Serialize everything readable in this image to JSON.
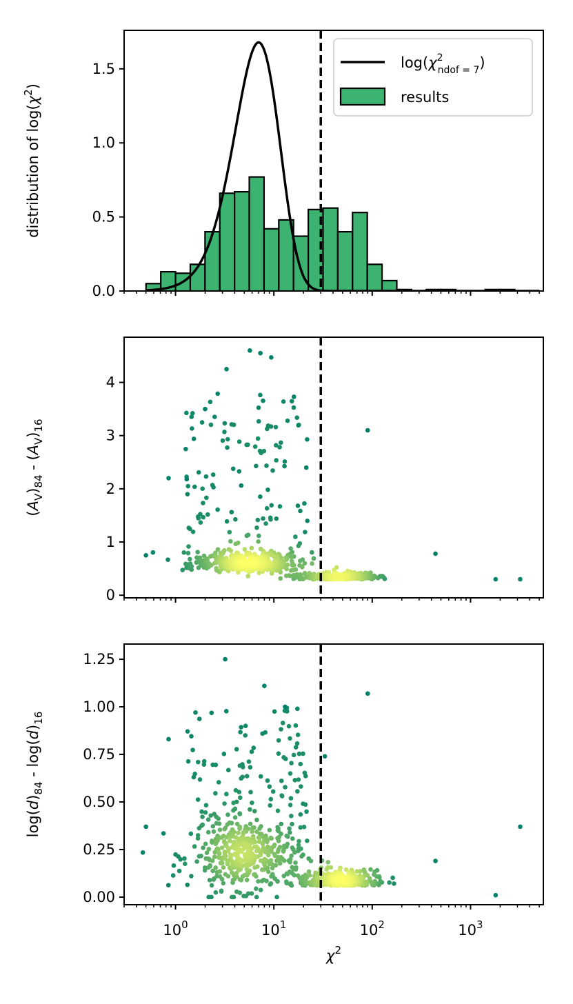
{
  "chart_data": [
    {
      "type": "histogram+line",
      "xscale": "log",
      "xlim": [
        0.3,
        5500
      ],
      "ylim": [
        0,
        1.76
      ],
      "ylabel": "distribution of log(χ²)",
      "yticks": [
        0.0,
        0.5,
        1.0,
        1.5
      ],
      "ytick_labels": [
        "0.0",
        "0.5",
        "1.0",
        "1.5"
      ],
      "vline": 30,
      "legend": {
        "placement": "top-right",
        "line_label": "log(χ²ndof = 7)",
        "bar_label": "results"
      },
      "hist_log10_edges": [
        -0.3,
        -0.15,
        0.0,
        0.15,
        0.3,
        0.45,
        0.6,
        0.75,
        0.9,
        1.05,
        1.2,
        1.35,
        1.5,
        1.65,
        1.8,
        1.95,
        2.1,
        2.25,
        2.4,
        2.55,
        2.7,
        2.85,
        3.0,
        3.15,
        3.3,
        3.45,
        3.6
      ],
      "hist_values": [
        0.05,
        0.13,
        0.12,
        0.18,
        0.4,
        0.66,
        0.67,
        0.77,
        0.42,
        0.48,
        0.37,
        0.55,
        0.56,
        0.4,
        0.53,
        0.18,
        0.07,
        0.01,
        0.0,
        0.01,
        0.01,
        0.0,
        0.0,
        0.01,
        0.01,
        0.0
      ],
      "bar_color": "#3cb371",
      "curve": {
        "ndof": 7,
        "color": "#000000"
      }
    },
    {
      "type": "scatter",
      "xscale": "log",
      "xlim": [
        0.3,
        5500
      ],
      "ylim": [
        -0.05,
        4.85
      ],
      "ylabel": "(AV)84 - (AV)16",
      "yticks": [
        0,
        1,
        2,
        3,
        4
      ],
      "ytick_labels": [
        "0",
        "1",
        "2",
        "3",
        "4"
      ],
      "vline": 30,
      "colormap": "summer (green to yellow, by point density)",
      "notable_points": [
        [
          0.5,
          0.75
        ],
        [
          0.85,
          2.2
        ],
        [
          1.3,
          2.18
        ],
        [
          2.0,
          3.5
        ],
        [
          3.3,
          4.25
        ],
        [
          5.7,
          4.6
        ],
        [
          7.3,
          4.55
        ],
        [
          9.4,
          4.47
        ],
        [
          16,
          3.73
        ],
        [
          90,
          3.1
        ],
        [
          440,
          0.78
        ],
        [
          1800,
          0.3
        ],
        [
          3200,
          0.3
        ]
      ]
    },
    {
      "type": "scatter",
      "xscale": "log",
      "xlim": [
        0.3,
        5500
      ],
      "ylim": [
        -0.04,
        1.33
      ],
      "ylabel": "log(d)84 - log(d)16",
      "yticks": [
        0.0,
        0.25,
        0.5,
        0.75,
        1.0,
        1.25
      ],
      "ytick_labels": [
        "0.00",
        "0.25",
        "0.50",
        "0.75",
        "1.00",
        "1.25"
      ],
      "xlabel": "χ²",
      "xticks": [
        1,
        10,
        100,
        1000
      ],
      "vline": 30,
      "colormap": "summer (green to yellow, by point density)",
      "notable_points": [
        [
          0.5,
          0.37
        ],
        [
          0.85,
          0.83
        ],
        [
          3.2,
          1.25
        ],
        [
          8.0,
          1.11
        ],
        [
          13,
          1.0
        ],
        [
          33,
          0.74
        ],
        [
          90,
          1.07
        ],
        [
          440,
          0.19
        ],
        [
          1800,
          0.01
        ],
        [
          3200,
          0.37
        ]
      ]
    }
  ],
  "colors": {
    "vline": "#000000",
    "frame": "#000000",
    "point_dark": "#008066",
    "point_light": "#ffff66"
  }
}
